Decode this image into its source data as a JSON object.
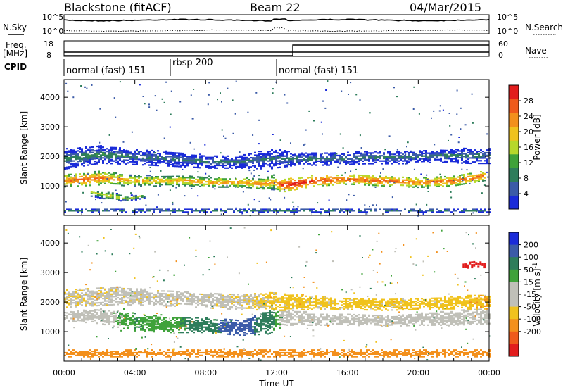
{
  "header": {
    "station": "Blackstone (fitACF)",
    "beam": "Beam 22",
    "date": "04/Mar/2015"
  },
  "side_labels": {
    "nsky": "N.Sky",
    "nsearch": "N.Search",
    "freq": "Freq.",
    "freq_unit": "[MHz]",
    "nave": "Nave",
    "cpid": "CPID"
  },
  "noise_axis": {
    "left_top": "10^5",
    "left_bottom": "10^0",
    "right_top": "10^5",
    "right_bottom": "10^0"
  },
  "freq_axis": {
    "left_top": "18",
    "left_bottom": "8",
    "right_top": "60",
    "right_bottom": "0"
  },
  "cpid_modes": [
    {
      "label": "normal (fast) 151",
      "start_hour": 0
    },
    {
      "label": "rbsp 200",
      "start_hour": 6
    },
    {
      "label": "normal (fast) 151",
      "start_hour": 12
    }
  ],
  "x_axis": {
    "label": "Time UT",
    "ticks": [
      "00:00",
      "04:00",
      "08:00",
      "12:00",
      "16:00",
      "20:00",
      "00:00"
    ]
  },
  "colors": {
    "power_scale": [
      "#1a2bd9",
      "#3b5ba8",
      "#2e7d5b",
      "#3fa23a",
      "#b6d82b",
      "#f0c21d",
      "#f3901c",
      "#ef5a1b",
      "#e21d1d"
    ],
    "velocity_scale": [
      "#1a2bd9",
      "#3b5ba8",
      "#2e7d5b",
      "#3fa23a",
      "#c0c0b8",
      "#c0c0b8",
      "#f0c21d",
      "#f3901c",
      "#ef5a1b",
      "#e21d1d"
    ],
    "ground_scatter": "#c0c0b8"
  },
  "chart_data": [
    {
      "type": "heatmap",
      "title": "",
      "xlabel": "",
      "ylabel": "Slant Range [km]",
      "xlim": [
        0,
        24
      ],
      "ylim": [
        0,
        4600
      ],
      "y_ticks": [
        "1000",
        "2000",
        "3000",
        "4000"
      ],
      "y_tick_values": [
        1000,
        2000,
        3000,
        4000
      ],
      "colorbar": {
        "label": "Power [dB]",
        "ticks": [
          "4",
          "8",
          "12",
          "16",
          "20",
          "24",
          "28"
        ],
        "tick_values": [
          4,
          8,
          12,
          16,
          20,
          24,
          28
        ],
        "range": [
          0,
          32
        ]
      },
      "bands": [
        {
          "name": "main",
          "x_hours": [
            0.0,
            1.0,
            2.0,
            3.0,
            4.0,
            5.0,
            6.0,
            7.0,
            8.0,
            9.0,
            10.0,
            11.0,
            11.8,
            12.3,
            13.0,
            14.0,
            16.0,
            18.0,
            20.0,
            22.0,
            23.0,
            23.8
          ],
          "center_km": [
            1150,
            1200,
            1250,
            1200,
            1150,
            1150,
            1150,
            1150,
            1100,
            1100,
            1100,
            1050,
            1100,
            1000,
            1050,
            1150,
            1200,
            1150,
            1100,
            1150,
            1250,
            1350
          ],
          "half_width_km": [
            200,
            220,
            230,
            200,
            180,
            180,
            170,
            160,
            160,
            160,
            160,
            160,
            250,
            220,
            200,
            180,
            160,
            170,
            170,
            160,
            160,
            180
          ],
          "power_db": [
            22,
            24,
            22,
            20,
            18,
            18,
            18,
            20,
            20,
            20,
            20,
            22,
            18,
            26,
            28,
            26,
            24,
            24,
            22,
            24,
            24,
            22
          ]
        },
        {
          "name": "upper",
          "x_hours": [
            0.0,
            2.0,
            4.0,
            6.0,
            8.0,
            10.0,
            11.5,
            13.0,
            15.0,
            17.0,
            19.0,
            21.0,
            23.0,
            24.0
          ],
          "center_km": [
            1900,
            2050,
            1950,
            1900,
            1800,
            1800,
            1900,
            1900,
            1900,
            1950,
            1950,
            2000,
            2000,
            2000
          ],
          "half_width_km": [
            350,
            300,
            250,
            250,
            220,
            220,
            350,
            220,
            220,
            220,
            220,
            220,
            260,
            260
          ],
          "power_db": [
            7,
            8,
            6,
            6,
            6,
            6,
            5,
            6,
            6,
            6,
            6,
            6,
            6,
            6
          ]
        },
        {
          "name": "lower",
          "x_hours": [
            1.5,
            2.5,
            3.5,
            4.5
          ],
          "center_km": [
            750,
            650,
            550,
            650
          ],
          "half_width_km": [
            120,
            130,
            100,
            80
          ],
          "power_db": [
            14,
            16,
            12,
            12
          ]
        },
        {
          "name": "near",
          "x_hours": [
            0.0,
            6.0,
            12.0,
            18.0,
            24.0
          ],
          "center_km": [
            150,
            150,
            150,
            150,
            150
          ],
          "half_width_km": [
            60,
            60,
            60,
            60,
            60
          ],
          "power_db": [
            8,
            8,
            8,
            8,
            8
          ]
        }
      ]
    },
    {
      "type": "heatmap",
      "title": "",
      "xlabel": "Time UT",
      "ylabel": "Slant Range [km]",
      "xlim": [
        0,
        24
      ],
      "ylim": [
        0,
        4600
      ],
      "y_ticks": [
        "1000",
        "2000",
        "3000",
        "4000"
      ],
      "y_tick_values": [
        1000,
        2000,
        3000,
        4000
      ],
      "colorbar": {
        "label": "Velocity [m s^-1]",
        "ticks": [
          "200",
          "100",
          "50",
          "15",
          "-15",
          "-50",
          "-100",
          "-200"
        ],
        "tick_values": [
          200,
          100,
          50,
          15,
          -15,
          -50,
          -100,
          -200
        ],
        "range": [
          -250,
          250
        ]
      },
      "bands": [
        {
          "name": "main",
          "x_hours": [
            0.0,
            2.0,
            4.0,
            6.0,
            8.0,
            10.0,
            11.5,
            12.5,
            14.0,
            16.0,
            18.0,
            20.0,
            22.0,
            24.0
          ],
          "center_km": [
            1500,
            1500,
            1300,
            1200,
            1200,
            1100,
            1300,
            1500,
            1400,
            1400,
            1350,
            1400,
            1450,
            1500
          ],
          "half_width_km": [
            150,
            250,
            300,
            250,
            250,
            250,
            400,
            300,
            200,
            200,
            200,
            200,
            250,
            250
          ],
          "velocity": [
            -5,
            0,
            30,
            20,
            60,
            100,
            50,
            -5,
            -5,
            -5,
            -5,
            -5,
            -5,
            -5
          ]
        },
        {
          "name": "upper",
          "x_hours": [
            0.0,
            3.0,
            6.0,
            9.0,
            12.0,
            15.0,
            18.0,
            21.0,
            24.0
          ],
          "center_km": [
            2100,
            2200,
            2100,
            2000,
            2000,
            1950,
            1900,
            1950,
            2000
          ],
          "half_width_km": [
            300,
            300,
            250,
            250,
            300,
            200,
            200,
            200,
            250
          ],
          "velocity": [
            -15,
            -10,
            -10,
            -10,
            -20,
            -20,
            -20,
            -20,
            -30
          ]
        },
        {
          "name": "near",
          "x_hours": [
            0.0,
            6.0,
            12.0,
            18.0,
            24.0
          ],
          "center_km": [
            250,
            250,
            250,
            250,
            250
          ],
          "half_width_km": [
            120,
            120,
            120,
            120,
            120
          ],
          "velocity": [
            -40,
            -60,
            -60,
            -60,
            -60
          ]
        },
        {
          "name": "event",
          "x_hours": [
            22.5,
            23.0,
            23.5,
            23.8
          ],
          "center_km": [
            3200,
            3250,
            3300,
            3200
          ],
          "half_width_km": [
            80,
            100,
            100,
            80
          ],
          "velocity": [
            -200,
            -220,
            -200,
            -150
          ]
        }
      ]
    }
  ]
}
